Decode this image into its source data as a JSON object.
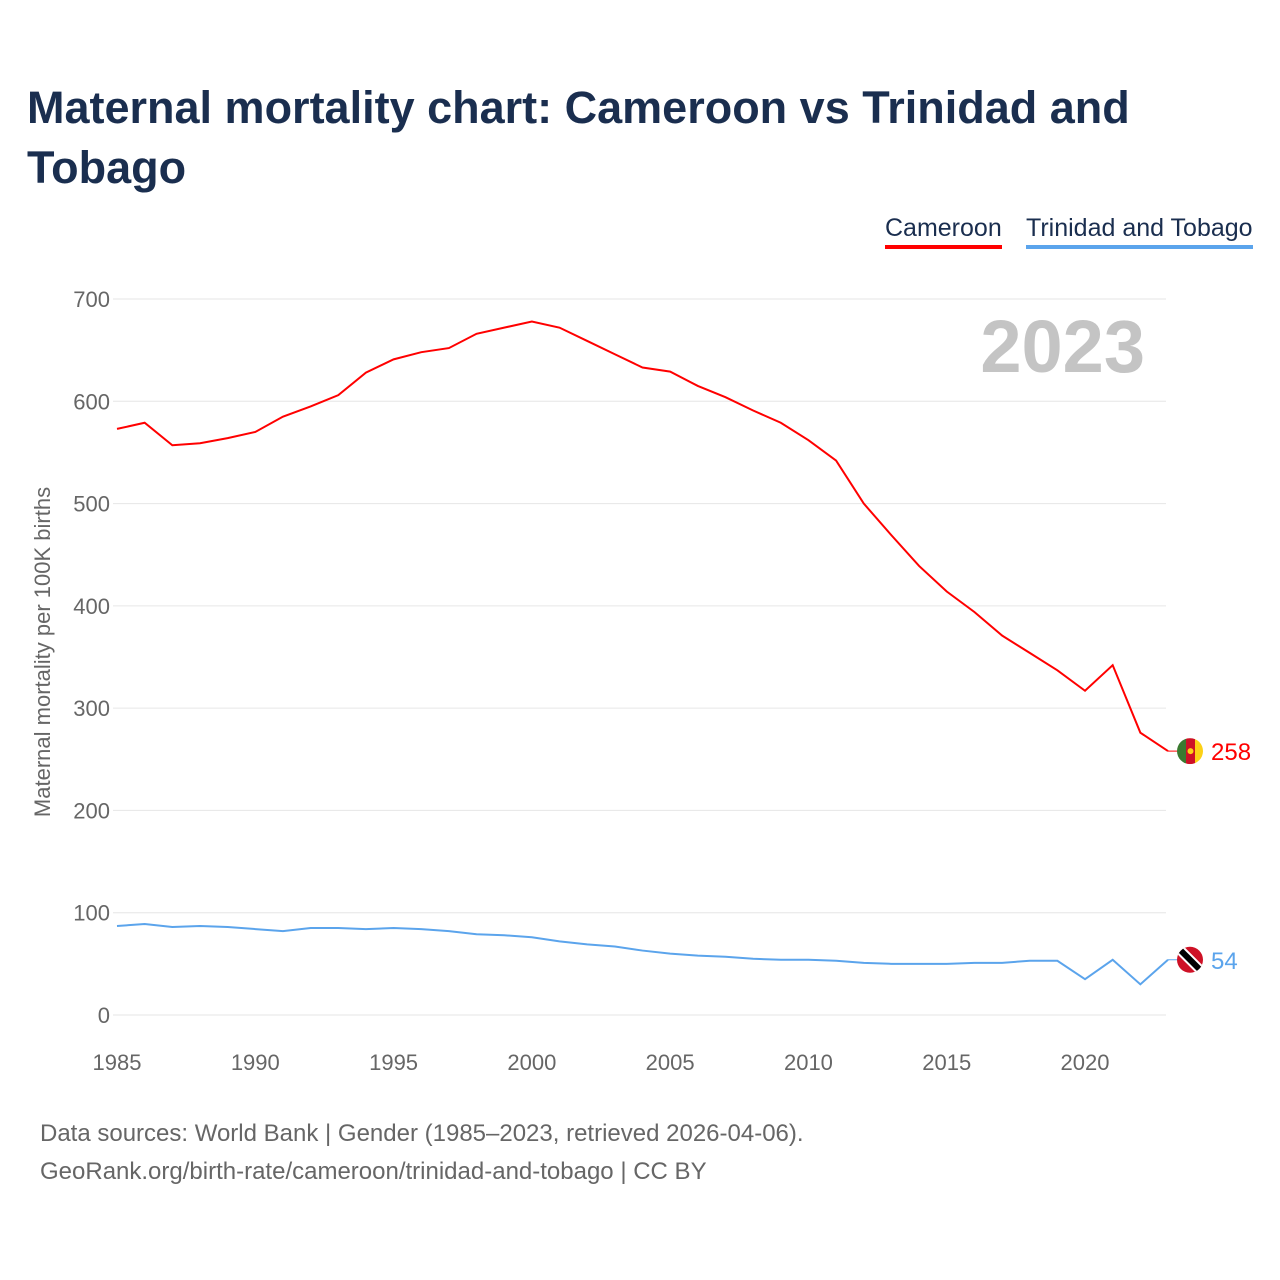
{
  "title": "Maternal mortality chart: Cameroon vs Trinidad and Tobago",
  "year_watermark": "2023",
  "footer": {
    "line1": "Data sources: World Bank | Gender (1985–2023, retrieved 2026-04-06).",
    "line2": "GeoRank.org/birth-rate/cameroon/trinidad-and-tobago | CC BY"
  },
  "chart_data": {
    "type": "line",
    "title": "Maternal mortality chart: Cameroon vs Trinidad and Tobago",
    "xlabel": "",
    "ylabel": "Maternal mortality per 100K births",
    "xlim": [
      1985,
      2023
    ],
    "ylim": [
      0,
      700
    ],
    "xticks": [
      "1985",
      "1990",
      "1995",
      "2000",
      "2005",
      "2010",
      "2015",
      "2020"
    ],
    "yticks": [
      "0",
      "100",
      "200",
      "300",
      "400",
      "500",
      "600",
      "700"
    ],
    "grid": true,
    "legend_position": "top-right",
    "x": [
      1985,
      1986,
      1987,
      1988,
      1989,
      1990,
      1991,
      1992,
      1993,
      1994,
      1995,
      1996,
      1997,
      1998,
      1999,
      2000,
      2001,
      2002,
      2003,
      2004,
      2005,
      2006,
      2007,
      2008,
      2009,
      2010,
      2011,
      2012,
      2013,
      2014,
      2015,
      2016,
      2017,
      2018,
      2019,
      2020,
      2021,
      2022,
      2023
    ],
    "series": [
      {
        "name": "Cameroon",
        "color": "#ff0000",
        "end_label": "258",
        "values": [
          573,
          579,
          557,
          559,
          564,
          570,
          585,
          595,
          606,
          628,
          641,
          648,
          652,
          666,
          672,
          678,
          672,
          659,
          646,
          633,
          629,
          615,
          604,
          591,
          579,
          562,
          542,
          500,
          469,
          439,
          414,
          394,
          371,
          354,
          337,
          317,
          342,
          276,
          258
        ]
      },
      {
        "name": "Trinidad and Tobago",
        "color": "#5ba4ec",
        "end_label": "54",
        "values": [
          87,
          89,
          86,
          87,
          86,
          84,
          82,
          85,
          85,
          84,
          85,
          84,
          82,
          79,
          78,
          76,
          72,
          69,
          67,
          63,
          60,
          58,
          57,
          55,
          54,
          54,
          53,
          51,
          50,
          50,
          50,
          51,
          51,
          53,
          53,
          35,
          54,
          30,
          54
        ]
      }
    ]
  }
}
